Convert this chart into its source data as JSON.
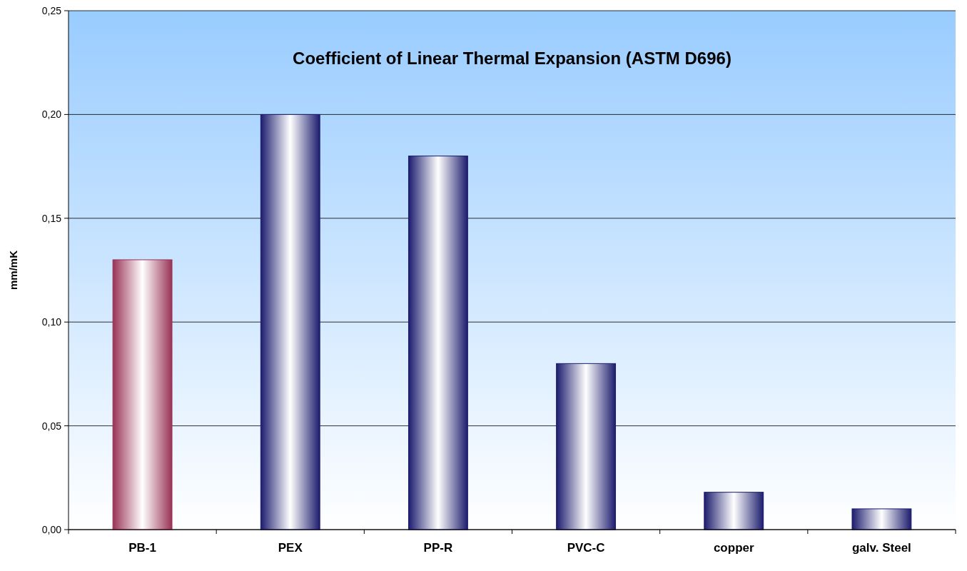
{
  "chart_data": {
    "type": "bar",
    "title": "Coefficient of Linear Thermal Expansion (ASTM D696)",
    "ylabel": "mm/mK",
    "categories": [
      "PB-1",
      "PEX",
      "PP-R",
      "PVC-C",
      "copper",
      "galv. Steel"
    ],
    "values": [
      0.13,
      0.2,
      0.18,
      0.08,
      0.018,
      0.01
    ],
    "colors": [
      "#993355",
      "#1c1c6e",
      "#1c1c6e",
      "#1c1c6e",
      "#1c1c6e",
      "#1c1c6e"
    ],
    "ylim": [
      0,
      0.25
    ],
    "yticks": [
      {
        "value": 0,
        "label": "0,00"
      },
      {
        "value": 0.05,
        "label": "0,05"
      },
      {
        "value": 0.1,
        "label": "0,10"
      },
      {
        "value": 0.15,
        "label": "0,15"
      },
      {
        "value": 0.2,
        "label": "0,20"
      },
      {
        "value": 0.25,
        "label": "0,25"
      }
    ],
    "grid": "y"
  }
}
